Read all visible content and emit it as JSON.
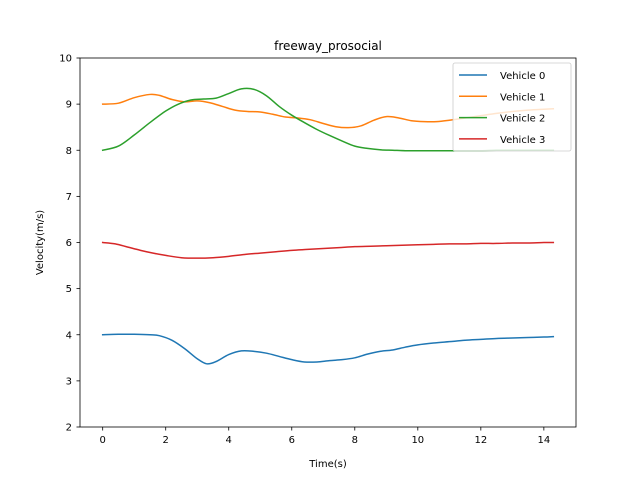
{
  "chart_data": {
    "type": "line",
    "title": "freeway_prosocial",
    "xlabel": "Time(s)",
    "ylabel": "Velocity(m/s)",
    "xlim": [
      -0.72,
      15.02
    ],
    "ylim": [
      2,
      10
    ],
    "xticks": [
      0,
      2,
      4,
      6,
      8,
      10,
      12,
      14
    ],
    "yticks": [
      2,
      3,
      4,
      5,
      6,
      7,
      8,
      9,
      10
    ],
    "grid": false,
    "legend_position": "top-right",
    "series": [
      {
        "name": "Vehicle 0",
        "color": "#1f77b4",
        "x": [
          0,
          0.5,
          1.0,
          1.5,
          1.8,
          2.2,
          2.6,
          3.0,
          3.3,
          3.6,
          4.0,
          4.4,
          4.8,
          5.2,
          5.6,
          6.0,
          6.4,
          6.8,
          7.2,
          7.6,
          8.0,
          8.4,
          8.8,
          9.2,
          9.6,
          10.0,
          10.5,
          11.0,
          11.5,
          12.0,
          12.5,
          13.0,
          13.5,
          14.0,
          14.3
        ],
        "y": [
          4.0,
          4.01,
          4.01,
          4.0,
          3.98,
          3.88,
          3.7,
          3.48,
          3.37,
          3.42,
          3.57,
          3.65,
          3.64,
          3.6,
          3.53,
          3.46,
          3.41,
          3.41,
          3.44,
          3.46,
          3.5,
          3.58,
          3.64,
          3.67,
          3.73,
          3.78,
          3.82,
          3.85,
          3.88,
          3.9,
          3.92,
          3.93,
          3.94,
          3.95,
          3.96
        ]
      },
      {
        "name": "Vehicle 1",
        "color": "#ff7f0e",
        "x": [
          0,
          0.5,
          1.0,
          1.5,
          1.8,
          2.2,
          2.6,
          3.0,
          3.4,
          3.8,
          4.2,
          4.6,
          5.0,
          5.4,
          5.8,
          6.2,
          6.6,
          7.0,
          7.4,
          7.8,
          8.2,
          8.6,
          9.0,
          9.4,
          9.8,
          10.2,
          10.6,
          11.0,
          11.5,
          12.0,
          12.5,
          13.0,
          13.5,
          14.0,
          14.3
        ],
        "y": [
          9.0,
          9.02,
          9.14,
          9.21,
          9.19,
          9.1,
          9.05,
          9.07,
          9.03,
          8.95,
          8.87,
          8.84,
          8.83,
          8.78,
          8.72,
          8.7,
          8.66,
          8.58,
          8.51,
          8.49,
          8.53,
          8.65,
          8.73,
          8.7,
          8.64,
          8.62,
          8.62,
          8.65,
          8.7,
          8.75,
          8.8,
          8.84,
          8.87,
          8.89,
          8.9
        ]
      },
      {
        "name": "Vehicle 2",
        "color": "#2ca02c",
        "x": [
          0,
          0.5,
          1.0,
          1.5,
          2.0,
          2.4,
          2.8,
          3.2,
          3.6,
          4.0,
          4.4,
          4.8,
          5.2,
          5.6,
          6.0,
          6.4,
          6.8,
          7.2,
          7.6,
          8.0,
          8.4,
          8.8,
          9.2,
          9.6,
          10.0,
          10.5,
          11.0,
          11.5,
          12.0,
          12.5,
          13.0,
          13.5,
          14.0,
          14.3
        ],
        "y": [
          8.0,
          8.09,
          8.33,
          8.6,
          8.85,
          9.0,
          9.09,
          9.11,
          9.13,
          9.23,
          9.33,
          9.32,
          9.18,
          8.95,
          8.76,
          8.6,
          8.45,
          8.32,
          8.2,
          8.09,
          8.04,
          8.01,
          8.0,
          7.99,
          7.99,
          7.99,
          7.99,
          7.99,
          7.99,
          8.0,
          8.0,
          8.0,
          8.0,
          8.0
        ]
      },
      {
        "name": "Vehicle 3",
        "color": "#d62728",
        "x": [
          0,
          0.4,
          0.8,
          1.2,
          1.6,
          2.0,
          2.5,
          3.0,
          3.5,
          4.0,
          4.5,
          5.0,
          5.5,
          6.0,
          6.5,
          7.0,
          7.5,
          8.0,
          8.5,
          9.0,
          9.5,
          10.0,
          10.5,
          11.0,
          11.5,
          12.0,
          12.5,
          13.0,
          13.5,
          14.0,
          14.3
        ],
        "y": [
          6.0,
          5.97,
          5.9,
          5.83,
          5.77,
          5.72,
          5.67,
          5.66,
          5.67,
          5.7,
          5.74,
          5.77,
          5.8,
          5.83,
          5.85,
          5.87,
          5.89,
          5.91,
          5.92,
          5.93,
          5.94,
          5.95,
          5.96,
          5.97,
          5.97,
          5.98,
          5.98,
          5.99,
          5.99,
          6.0,
          6.0
        ]
      }
    ]
  }
}
